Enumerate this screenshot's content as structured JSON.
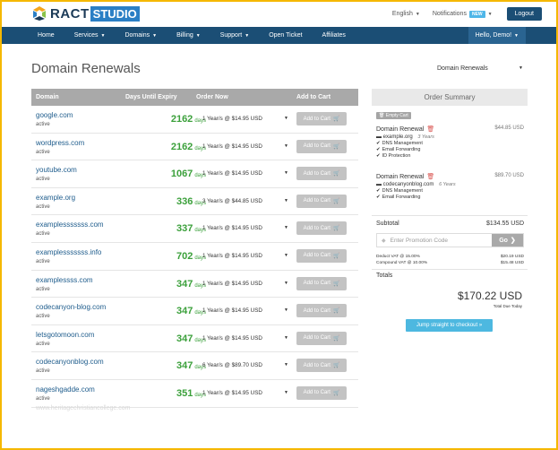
{
  "header": {
    "logo_text": "RACT",
    "logo_studio": "STUDIO",
    "language": "English",
    "notifications": "Notifications",
    "new_badge": "NEW",
    "logout": "Logout"
  },
  "nav": {
    "items": [
      "Home",
      "Services",
      "Domains",
      "Billing",
      "Support",
      "Open Ticket",
      "Affiliates"
    ],
    "user": "Hello, Demo!"
  },
  "page": {
    "title": "Domain Renewals",
    "select_value": "Domain Renewals"
  },
  "table": {
    "headers": {
      "domain": "Domain",
      "days": "Days Until Expiry",
      "order": "Order Now",
      "add": "Add to Cart"
    },
    "days_unit": "days",
    "add_label": "Add to Cart",
    "rows": [
      {
        "domain": "google.com",
        "status": "active",
        "days": "2162",
        "order": "1 Year/s @ $14.95 USD"
      },
      {
        "domain": "wordpress.com",
        "status": "active",
        "days": "2162",
        "order": "1 Year/s @ $14.95 USD"
      },
      {
        "domain": "youtube.com",
        "status": "active",
        "days": "1067",
        "order": "1 Year/s @ $14.95 USD"
      },
      {
        "domain": "example.org",
        "status": "active",
        "days": "336",
        "order": "3 Year/s @ $44.85 USD"
      },
      {
        "domain": "examplesssssss.com",
        "status": "active",
        "days": "337",
        "order": "1 Year/s @ $14.95 USD"
      },
      {
        "domain": "examplesssssss.info",
        "status": "active",
        "days": "702",
        "order": "1 Year/s @ $14.95 USD"
      },
      {
        "domain": "examplessss.com",
        "status": "active",
        "days": "347",
        "order": "1 Year/s @ $14.95 USD"
      },
      {
        "domain": "codecanyon-blog.com",
        "status": "active",
        "days": "347",
        "order": "1 Year/s @ $14.95 USD"
      },
      {
        "domain": "letsgotomoon.com",
        "status": "active",
        "days": "347",
        "order": "1 Year/s @ $14.95 USD"
      },
      {
        "domain": "codecanyonblog.com",
        "status": "active",
        "days": "347",
        "order": "6 Year/s @ $89.70 USD"
      },
      {
        "domain": "nageshgadde.com",
        "status": "active",
        "days": "351",
        "order": "1 Year/s @ $14.95 USD"
      }
    ]
  },
  "summary": {
    "title": "Order Summary",
    "empty_cart": "Empty Cart",
    "items": [
      {
        "title": "Domain Renewal",
        "price": "$44.85 USD",
        "domain": "example.org",
        "years": "3 Years",
        "features": [
          "DNS Management",
          "Email Forwarding",
          "ID Protection"
        ]
      },
      {
        "title": "Domain Renewal",
        "price": "$89.70 USD",
        "domain": "codecanyonblog.com",
        "years": "6 Years",
        "features": [
          "DNS Management",
          "Email Forwarding"
        ]
      }
    ],
    "subtotal_label": "Subtotal",
    "subtotal_value": "$134.55 USD",
    "promo_placeholder": "Enter Promotion Code",
    "go_label": "Go",
    "vat1_label": "Deduct VAT @ 15.00%",
    "vat1_value": "$20.19 USD",
    "vat2_label": "Compound VAT @ 10.00%",
    "vat2_value": "$15.48 USD",
    "totals_label": "Totals",
    "total_value": "$170.22 USD",
    "total_due_label": "Total Due Today",
    "checkout_label": "Jump straight to checkout »"
  },
  "watermark": "www.heritagechristiancollege.com",
  "colors": {
    "navbar": "#1b4e75",
    "days_green": "#3ba03b",
    "link_blue": "#1e5c8c",
    "checkout_blue": "#4db8e0",
    "frame": "#f5b800"
  }
}
